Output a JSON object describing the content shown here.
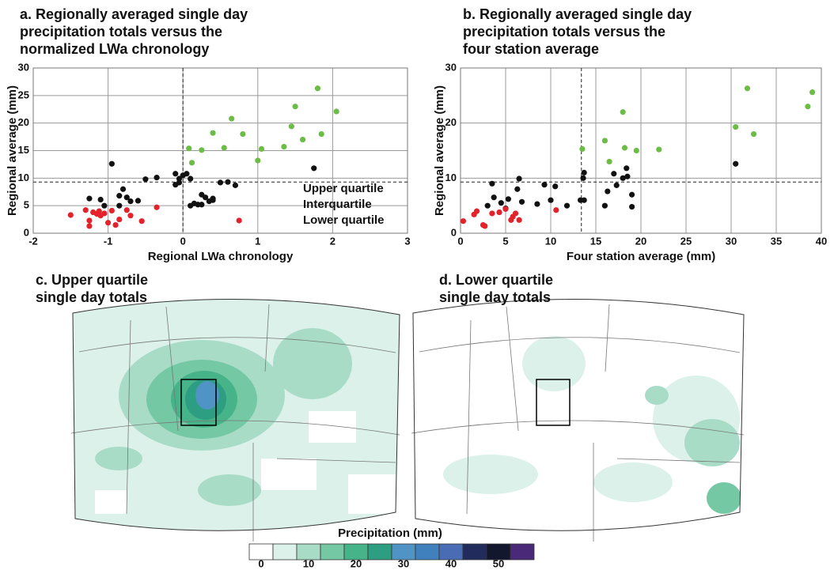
{
  "chart_data": [
    {
      "type": "scatter",
      "title": [
        "a. Regionally averaged single day",
        "precipitation totals versus the",
        "normalized LWa chronology"
      ],
      "x_label": "Regional LWa chronology",
      "y_label": "Regional average (mm)",
      "xlim": [
        -2,
        3
      ],
      "ylim": [
        0,
        30
      ],
      "xticks": [
        -2,
        -1,
        0,
        1,
        2,
        3
      ],
      "yticks": [
        0,
        5,
        10,
        15,
        20,
        25,
        30
      ],
      "grid": true,
      "vlines": [
        0
      ],
      "hlines": [
        9.3
      ],
      "legend": "lower right",
      "series": [
        {
          "name": "Upper quartile",
          "color": "#6cbd45",
          "x": [
            0.08,
            0.12,
            0.25,
            0.4,
            0.55,
            0.65,
            0.8,
            1.0,
            1.05,
            1.35,
            1.45,
            1.5,
            1.6,
            1.8,
            1.85,
            2.05
          ],
          "values": [
            15.4,
            12.8,
            15.1,
            18.2,
            15.5,
            20.8,
            18,
            13.2,
            15.3,
            15.7,
            19.4,
            23,
            17,
            26.3,
            18,
            22.1
          ]
        },
        {
          "name": "Interquartile",
          "color": "#111111",
          "x": [
            -1.25,
            -1.1,
            -1.05,
            -0.95,
            -0.85,
            -0.85,
            -0.8,
            -0.75,
            -0.7,
            -0.6,
            -0.5,
            -0.35,
            -0.1,
            -0.05,
            0,
            -0.1,
            0.05,
            -0.05,
            0.1,
            0.1,
            0.15,
            0.2,
            0.25,
            0.25,
            0.3,
            0.35,
            0.4,
            0.4,
            0.5,
            0.6,
            0.7,
            1.75
          ],
          "values": [
            6.3,
            6.1,
            5,
            12.6,
            6.8,
            5,
            8,
            6.5,
            5.8,
            5.9,
            9.8,
            10.1,
            10.8,
            9.9,
            10.5,
            8.8,
            10.8,
            9.2,
            9.9,
            5,
            5.4,
            5.2,
            7,
            5.2,
            6.5,
            5.8,
            6,
            6.3,
            9.2,
            9.3,
            8.7,
            11.8
          ]
        },
        {
          "name": "Lower quartile",
          "color": "#e3222b",
          "x": [
            -1.5,
            -1.3,
            -1.25,
            -1.25,
            -1.2,
            -1.15,
            -1.12,
            -1.1,
            -1.05,
            -1.0,
            -0.95,
            -0.9,
            -0.85,
            -0.75,
            -0.7,
            -0.55,
            -0.35,
            0.75
          ],
          "values": [
            3.3,
            4.2,
            2.3,
            1.3,
            3.8,
            3.5,
            4,
            3.2,
            3.6,
            1.9,
            4.1,
            1.5,
            2.5,
            4.2,
            3.2,
            2.2,
            4.7,
            2.3
          ]
        }
      ]
    },
    {
      "type": "scatter",
      "title": [
        "b. Regionally averaged single day",
        "precipitation totals versus the",
        "four station average"
      ],
      "x_label": "Four station average (mm)",
      "y_label": "Regional average (mm)",
      "xlim": [
        0,
        40
      ],
      "ylim": [
        0,
        30
      ],
      "xticks": [
        0,
        5,
        10,
        15,
        20,
        25,
        30,
        35,
        40
      ],
      "yticks": [
        0,
        10,
        20,
        30
      ],
      "grid": true,
      "vlines": [
        13.4
      ],
      "hlines": [
        9.3
      ],
      "series": [
        {
          "color": "#6cbd45",
          "x": [
            13.5,
            16,
            16.5,
            18,
            18.2,
            19.5,
            22,
            30.5,
            31.8,
            32.5,
            38.5,
            39
          ],
          "values": [
            15.3,
            16.8,
            13,
            22,
            15.5,
            15,
            15.2,
            19.3,
            26.3,
            18,
            23,
            25.6
          ]
        },
        {
          "color": "#111111",
          "x": [
            3.5,
            3,
            3.7,
            4.5,
            5,
            5.3,
            6.3,
            6.5,
            6.8,
            8.5,
            9.3,
            10,
            10.5,
            11.8,
            13.3,
            13.6,
            13.7,
            13.7,
            16,
            16.3,
            17,
            17.3,
            18,
            18.4,
            18.5,
            19,
            19,
            30.5
          ],
          "values": [
            9,
            5,
            6.5,
            5.5,
            4.5,
            6.2,
            8,
            9.9,
            5.7,
            5.3,
            8.8,
            6,
            8.5,
            5,
            6,
            10,
            11,
            6,
            5,
            7.6,
            10.8,
            8.7,
            10,
            11.8,
            10.3,
            7,
            4.8,
            12.6
          ]
        },
        {
          "color": "#e3222b",
          "x": [
            0.3,
            1.5,
            1.8,
            2.5,
            2.7,
            3.5,
            4.3,
            5,
            5.6,
            5.8,
            6.1,
            6.5,
            10.6
          ],
          "values": [
            2.2,
            3.4,
            4,
            1.5,
            1.3,
            3.6,
            3.8,
            4.4,
            2.4,
            3,
            3.6,
            2.4,
            4.2
          ]
        }
      ]
    }
  ],
  "maps": [
    {
      "title": [
        "c. Upper quartile",
        "single day totals"
      ]
    },
    {
      "title": [
        "d. Lower quartile",
        "single day totals"
      ]
    }
  ],
  "colorbar": {
    "title": "Precipitation (mm)",
    "clim": [
      -2.5,
      57.5
    ],
    "colors": [
      "#ffffff",
      "#dcf1ea",
      "#a9dcc6",
      "#74c8a4",
      "#46b388",
      "#2e9e82",
      "#4f94c4",
      "#3f80bd",
      "#4a6cb5",
      "#222c5c",
      "#12172e",
      "#4a2a78"
    ],
    "ticks": [
      0,
      10,
      20,
      30,
      40,
      50
    ]
  }
}
